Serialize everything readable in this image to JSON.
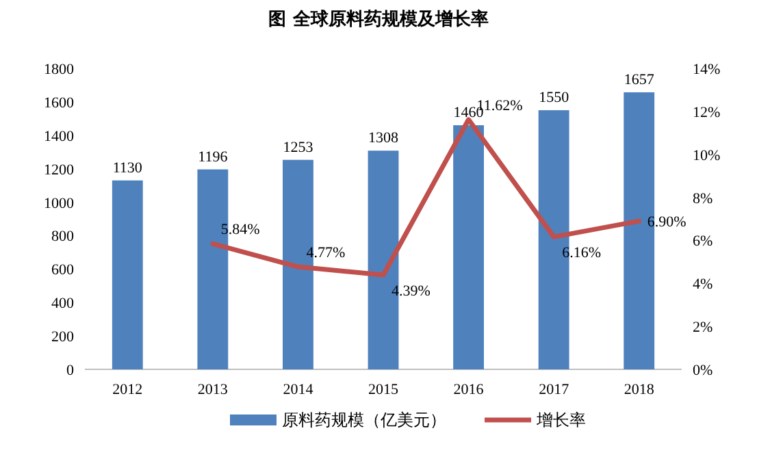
{
  "chart_data": {
    "type": "bar",
    "title": "图 全球原料药规模及增长率",
    "categories": [
      "2012",
      "2013",
      "2014",
      "2015",
      "2016",
      "2017",
      "2018"
    ],
    "series": [
      {
        "name": "原料药规模（亿美元）",
        "color": "#4f81bd",
        "values": [
          1130,
          1196,
          1253,
          1308,
          1460,
          1550,
          1657
        ],
        "value_labels": [
          "1130",
          "1196",
          "1253",
          "1308",
          "1460",
          "1550",
          "1657"
        ]
      },
      {
        "name": "增长率",
        "type": "line",
        "axis": "y2",
        "color": "#c0504d",
        "values": [
          null,
          5.84,
          4.77,
          4.39,
          11.62,
          6.16,
          6.9
        ],
        "value_labels": [
          null,
          "5.84%",
          "4.77%",
          "4.39%",
          "11.62%",
          "6.16%",
          "6.90%"
        ]
      }
    ],
    "ylim": [
      0,
      1800
    ],
    "yticks": [
      0,
      200,
      400,
      600,
      800,
      1000,
      1200,
      1400,
      1600,
      1800
    ],
    "y2lim": [
      0,
      14
    ],
    "y2ticks": [
      {
        "value": 0,
        "label": "0%"
      },
      {
        "value": 2,
        "label": "2%"
      },
      {
        "value": 4,
        "label": "4%"
      },
      {
        "value": 6,
        "label": "6%"
      },
      {
        "value": 8,
        "label": "8%"
      },
      {
        "value": 10,
        "label": "10%"
      },
      {
        "value": 12,
        "label": "12%"
      },
      {
        "value": 14,
        "label": "14%"
      }
    ],
    "legend": "bottom",
    "marker": "none"
  }
}
